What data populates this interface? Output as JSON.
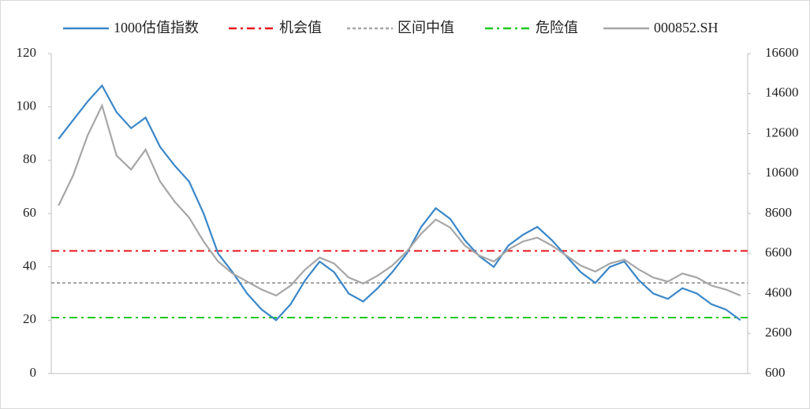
{
  "chart_data": {
    "type": "line",
    "categories": [
      null,
      null,
      null,
      null,
      null,
      null,
      null,
      null,
      null,
      null,
      null,
      null,
      null,
      null,
      null,
      null,
      null,
      null,
      null,
      null,
      null,
      null,
      null,
      null,
      null,
      null,
      null,
      null,
      null,
      null,
      null,
      null,
      null,
      null,
      null,
      null,
      null,
      null,
      null,
      null,
      null,
      null,
      null,
      null,
      null,
      null,
      null,
      null
    ],
    "series": [
      {
        "name": "1000估值指数",
        "color": "#3a87c8",
        "values": [
          88,
          95,
          102,
          108,
          98,
          92,
          96,
          85,
          78,
          72,
          60,
          45,
          38,
          30,
          24,
          20,
          26,
          35,
          42,
          38,
          30,
          27,
          32,
          38,
          45,
          55,
          62,
          58,
          50,
          44,
          40,
          48,
          52,
          55,
          50,
          44,
          38,
          34,
          40,
          42,
          35,
          30,
          28,
          32,
          30,
          26,
          24,
          20
        ]
      },
      {
        "name": "000852.SH",
        "color": "#a6a6a6",
        "axis": "y2",
        "values": [
          9000,
          10500,
          12500,
          14000,
          11500,
          10800,
          11800,
          10200,
          9200,
          8400,
          7200,
          6200,
          5600,
          5200,
          4800,
          4500,
          5000,
          5800,
          6400,
          6100,
          5400,
          5100,
          5500,
          6000,
          6700,
          7600,
          8300,
          7900,
          7000,
          6500,
          6200,
          6800,
          7200,
          7400,
          7000,
          6500,
          6000,
          5700,
          6100,
          6300,
          5800,
          5400,
          5200,
          5600,
          5400,
          5000,
          4800,
          4500
        ]
      }
    ],
    "hlines": [
      {
        "name": "机会值",
        "color": "#e8141c",
        "dash": "10 5 3 5",
        "value": 46
      },
      {
        "name": "区间中值",
        "color": "#a6a6a6",
        "dash": "4 3",
        "value": 34
      },
      {
        "name": "危险值",
        "color": "#1ec81e",
        "dash": "10 5 3 5",
        "value": 21
      }
    ],
    "ylim": [
      0,
      120
    ],
    "yticks": [
      0,
      20,
      40,
      60,
      80,
      100,
      120
    ],
    "y2lim": [
      600,
      16600
    ],
    "y2ticks": [
      600,
      2600,
      4600,
      6600,
      8600,
      10600,
      12600,
      14600,
      16600
    ]
  }
}
